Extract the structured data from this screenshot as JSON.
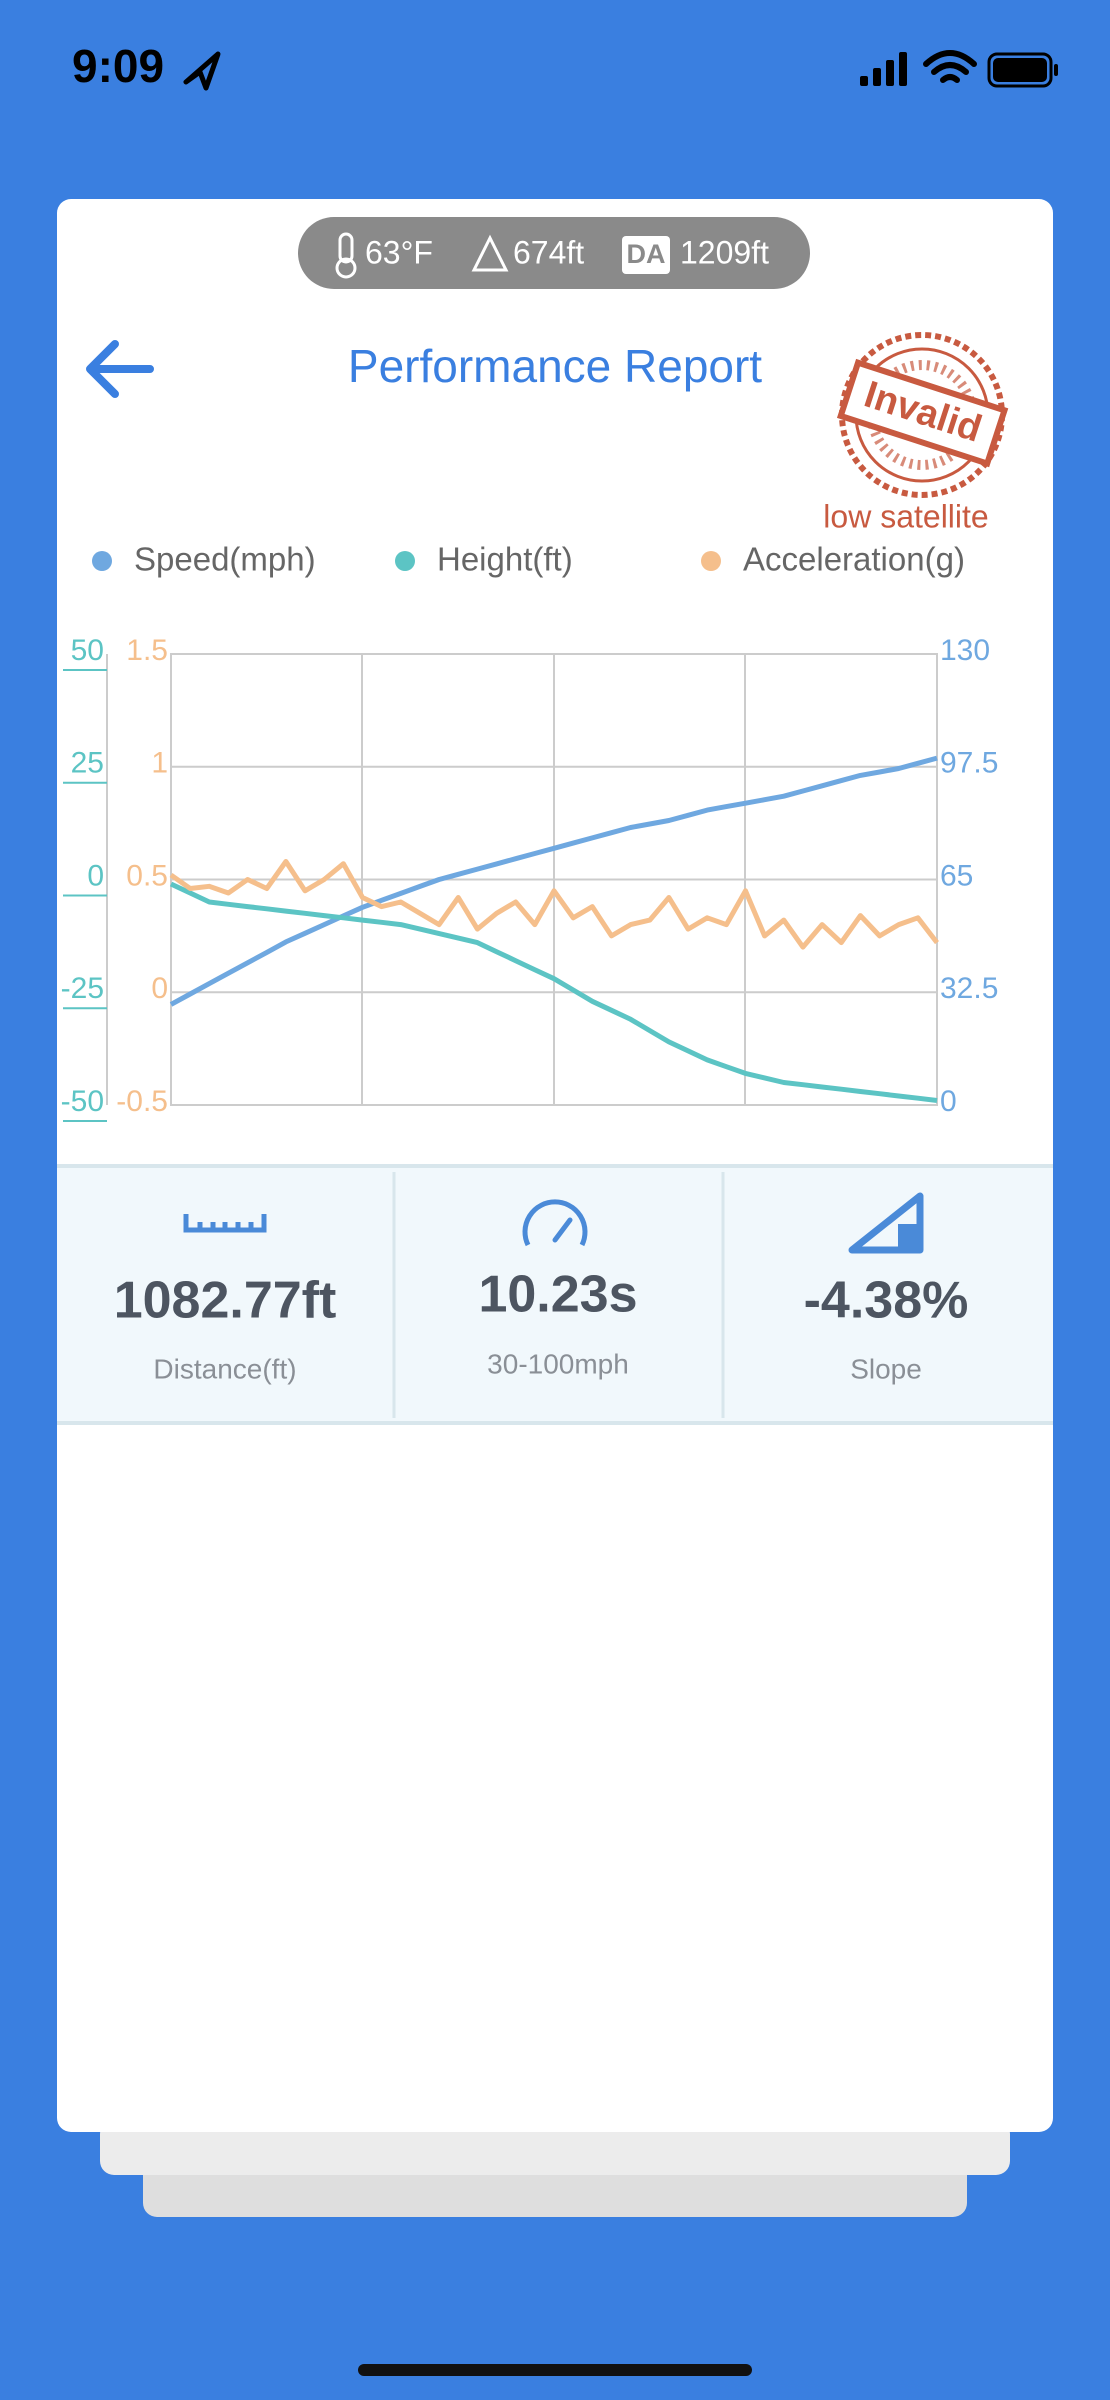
{
  "status_bar": {
    "time": "9:09"
  },
  "conditions": {
    "temperature": "63°F",
    "elevation": "674ft",
    "da_badge": "DA",
    "density_altitude": "1209ft"
  },
  "header": {
    "title": "Performance Report",
    "stamp": "Invalid",
    "stamp_note": "low satellite"
  },
  "chart_data": {
    "type": "line",
    "grid": true,
    "legend": "top",
    "ylim": [
      -50,
      50
    ],
    "yticks": [
      -50,
      -25,
      0,
      25,
      50
    ],
    "y2lim": [
      0,
      130
    ],
    "y2ticks": [
      0,
      32.5,
      65,
      97.5,
      130
    ],
    "y3lim": [
      -0.5,
      1.5
    ],
    "y3ticks": [
      -0.5,
      0,
      0.5,
      1,
      1.5
    ],
    "series": [
      {
        "name": "Speed(mph)",
        "color": "#6fa8e0",
        "axis": "y2",
        "values": [
          29,
          32,
          35,
          38,
          41,
          44,
          47,
          49.5,
          52,
          54.5,
          57,
          59,
          61,
          63,
          65,
          66.5,
          68,
          69.5,
          71,
          72.5,
          74,
          75.5,
          77,
          78.5,
          80,
          81,
          82,
          83.5,
          85,
          86,
          87,
          88,
          89,
          90.5,
          92,
          93.5,
          95,
          96,
          97,
          98.5,
          100
        ]
      },
      {
        "name": "Height(ft)",
        "color": "#5cc4c4",
        "axis": "y",
        "values": [
          -1,
          -3,
          -5,
          -5.5,
          -6,
          -6.5,
          -7,
          -7.5,
          -8,
          -8.5,
          -9,
          -9.5,
          -10,
          -11,
          -12,
          -13,
          -14,
          -16,
          -18,
          -20,
          -22,
          -24.5,
          -27,
          -29,
          -31,
          -33.5,
          -36,
          -38,
          -40,
          -41.5,
          -43,
          -44,
          -45,
          -45.5,
          -46,
          -46.5,
          -47,
          -47.5,
          -48,
          -48.5,
          -49
        ]
      },
      {
        "name": "Acceleration(g)",
        "color": "#f5bf8c",
        "axis": "y3",
        "values": [
          0.52,
          0.46,
          0.47,
          0.44,
          0.5,
          0.46,
          0.58,
          0.45,
          0.5,
          0.57,
          0.42,
          0.38,
          0.4,
          0.35,
          0.3,
          0.42,
          0.28,
          0.35,
          0.4,
          0.3,
          0.45,
          0.33,
          0.38,
          0.25,
          0.3,
          0.32,
          0.42,
          0.28,
          0.33,
          0.3,
          0.45,
          0.25,
          0.32,
          0.2,
          0.3,
          0.22,
          0.34,
          0.25,
          0.3,
          0.33,
          0.22
        ]
      }
    ]
  },
  "stats": [
    {
      "value": "1082.77ft",
      "label": "Distance(ft)"
    },
    {
      "value": "10.23s",
      "label": "30-100mph"
    },
    {
      "value": "-4.38%",
      "label": "Slope"
    }
  ]
}
